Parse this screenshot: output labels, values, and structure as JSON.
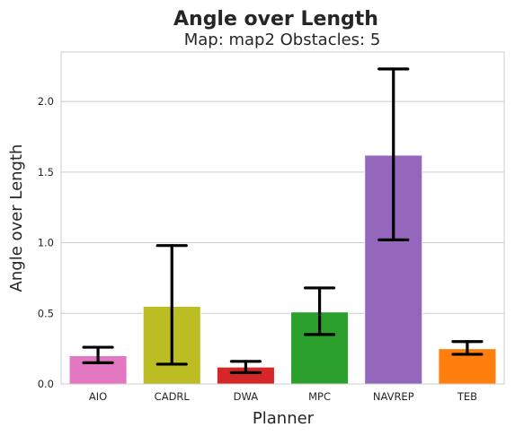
{
  "chart_data": {
    "type": "bar",
    "title": "Angle over Length",
    "subtitle": "Map: map2 Obstacles: 5",
    "xlabel": "Planner",
    "ylabel": "Angle over Length",
    "categories": [
      "AIO",
      "CADRL",
      "DWA",
      "MPC",
      "NAVREP",
      "TEB"
    ],
    "values": [
      0.2,
      0.55,
      0.12,
      0.51,
      1.62,
      0.25
    ],
    "error_low": [
      0.15,
      0.14,
      0.08,
      0.35,
      1.02,
      0.21
    ],
    "error_high": [
      0.26,
      0.98,
      0.16,
      0.68,
      2.23,
      0.3
    ],
    "colors": [
      "#e377c2",
      "#bcbd22",
      "#d62728",
      "#2ca02c",
      "#9467bd",
      "#ff7f0e"
    ],
    "ylim": [
      0,
      2.35
    ],
    "yticks": [
      0.0,
      0.5,
      1.0,
      1.5,
      2.0
    ],
    "ytick_labels": [
      "0.0",
      "0.5",
      "1.0",
      "1.5",
      "2.0"
    ],
    "grid": "horizontal",
    "legend": "none"
  }
}
